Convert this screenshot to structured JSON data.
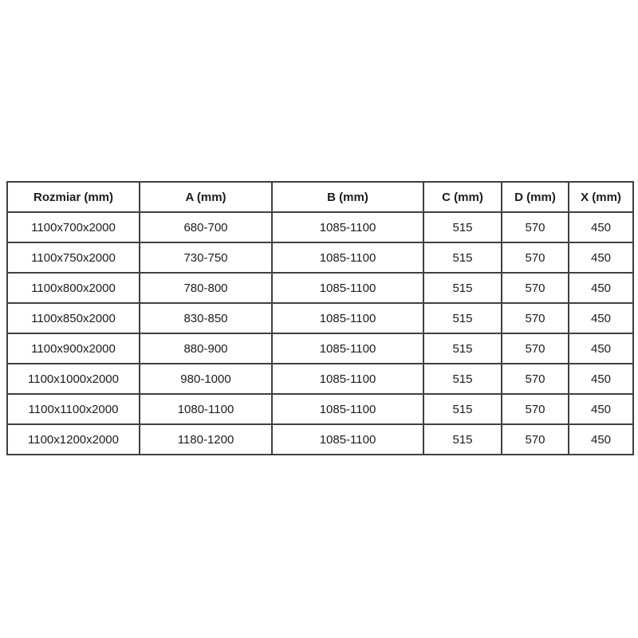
{
  "colors": {
    "background": "#ffffff",
    "table_border": "#404040",
    "text": "#1c1c1c"
  },
  "table": {
    "columns": [
      {
        "label": "Rozmiar (mm)"
      },
      {
        "label": "A (mm)"
      },
      {
        "label": "B (mm)"
      },
      {
        "label": "C (mm)"
      },
      {
        "label": "D (mm)"
      },
      {
        "label": "X (mm)"
      }
    ],
    "rows": [
      [
        "1100x700x2000",
        "680-700",
        "1085-1100",
        "515",
        "570",
        "450"
      ],
      [
        "1100x750x2000",
        "730-750",
        "1085-1100",
        "515",
        "570",
        "450"
      ],
      [
        "1100x800x2000",
        "780-800",
        "1085-1100",
        "515",
        "570",
        "450"
      ],
      [
        "1100x850x2000",
        "830-850",
        "1085-1100",
        "515",
        "570",
        "450"
      ],
      [
        "1100x900x2000",
        "880-900",
        "1085-1100",
        "515",
        "570",
        "450"
      ],
      [
        "1100x1000x2000",
        "980-1000",
        "1085-1100",
        "515",
        "570",
        "450"
      ],
      [
        "1100x1100x2000",
        "1080-1100",
        "1085-1100",
        "515",
        "570",
        "450"
      ],
      [
        "1100x1200x2000",
        "1180-1200",
        "1085-1100",
        "515",
        "570",
        "450"
      ]
    ]
  }
}
